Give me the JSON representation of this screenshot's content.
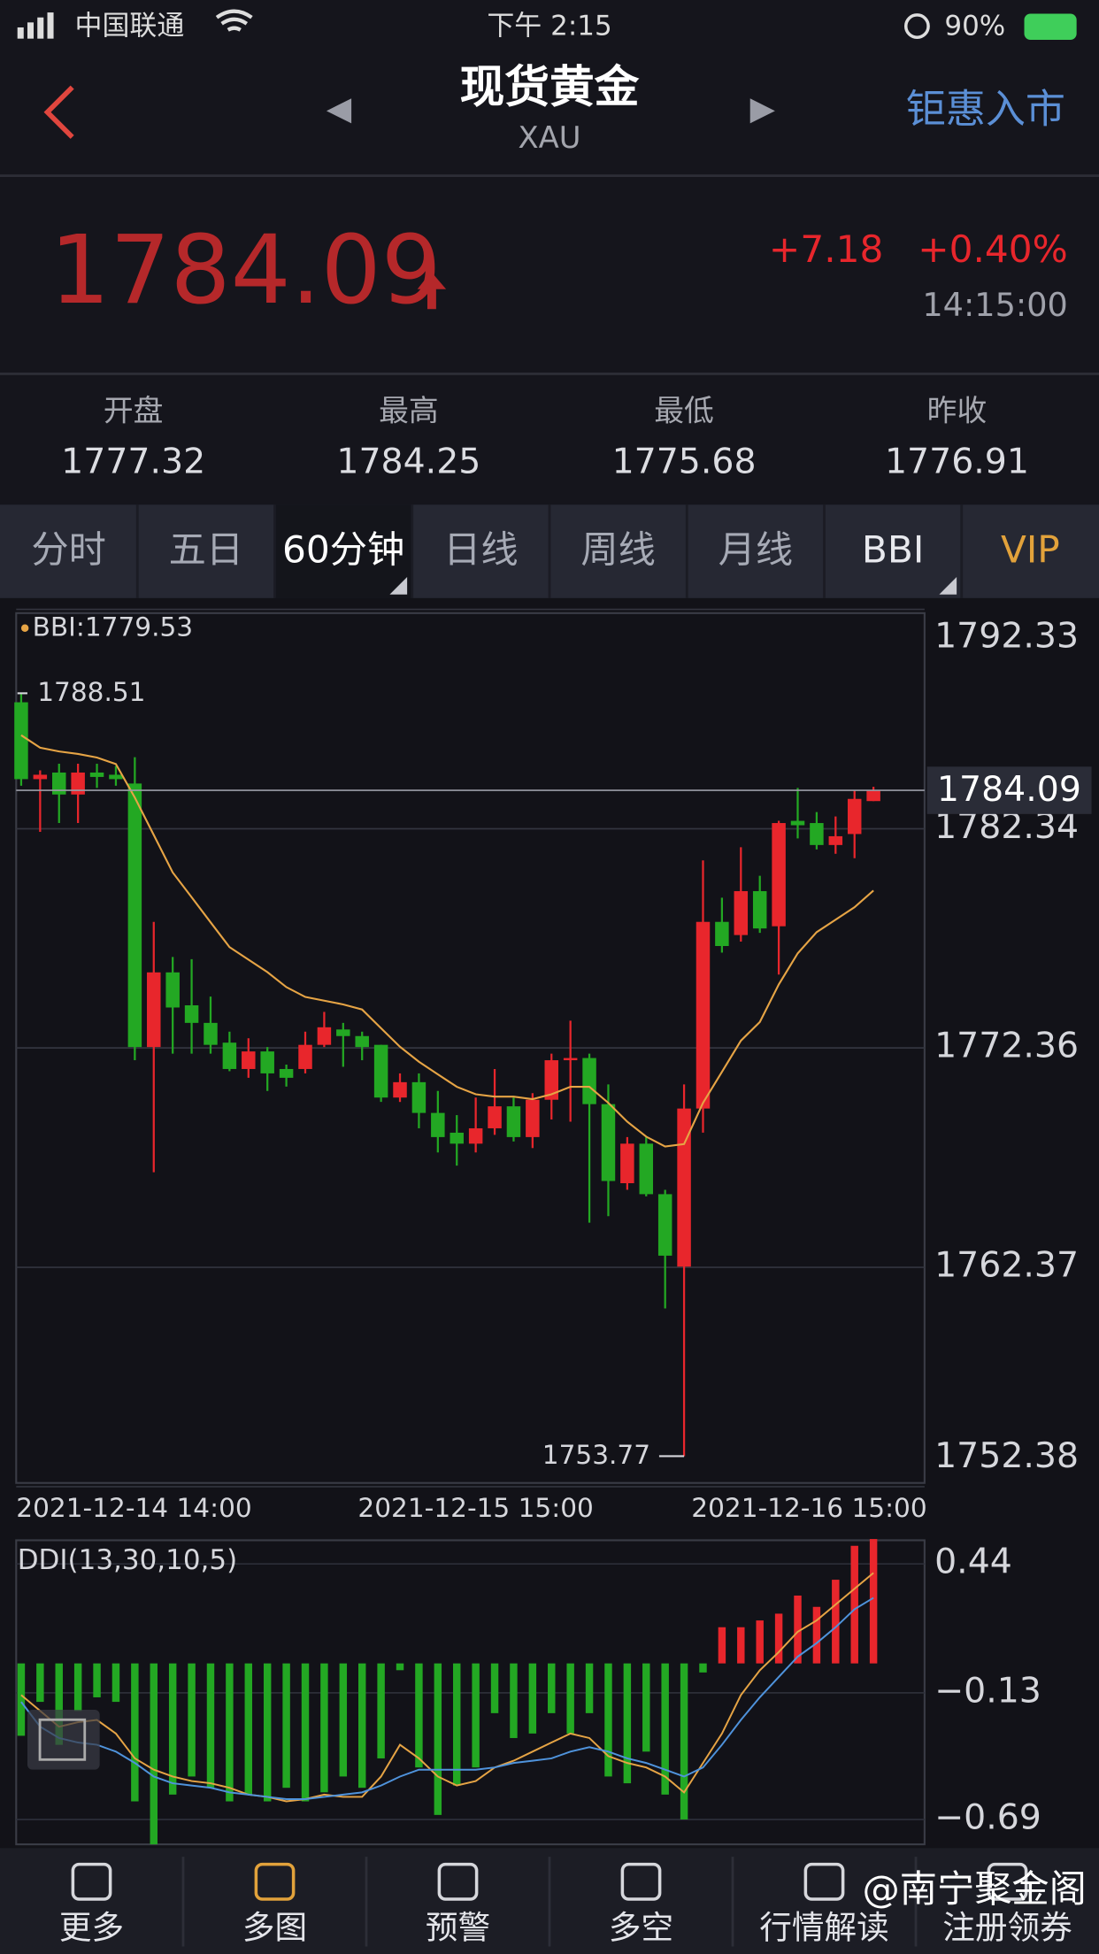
{
  "status_bar": {
    "carrier": "中国联通",
    "time": "下午 2:15",
    "battery": "90%"
  },
  "header": {
    "title": "现货黄金",
    "subtitle": "XAU",
    "action": "钜惠入市"
  },
  "quote": {
    "price": "1784.09",
    "change": "+7.18",
    "change_pct": "+0.40%",
    "time": "14:15:00"
  },
  "stats": [
    {
      "label": "开盘",
      "value": "1777.32"
    },
    {
      "label": "最高",
      "value": "1784.25"
    },
    {
      "label": "最低",
      "value": "1775.68"
    },
    {
      "label": "昨收",
      "value": "1776.91"
    }
  ],
  "tabs": [
    "分时",
    "五日",
    "60分钟",
    "日线",
    "周线",
    "月线",
    "BBI",
    "VIP"
  ],
  "chart_data": [
    {
      "type": "candlestick",
      "categories": [
        "2021-12-14 14:00",
        null,
        null,
        null,
        null,
        null,
        null,
        null,
        null,
        null,
        null,
        null,
        null,
        null,
        null,
        null,
        null,
        null,
        null,
        null,
        null,
        null,
        null,
        null,
        "2021-12-15 15:00",
        null,
        null,
        null,
        null,
        null,
        null,
        null,
        null,
        null,
        null,
        null,
        null,
        null,
        null,
        null,
        null,
        null,
        "2021-12-16 15:00",
        null,
        null,
        null
      ],
      "open": [
        1788.1,
        1784.6,
        1784.9,
        1783.9,
        1784.9,
        1784.8,
        1784.4,
        1772.4,
        1775.8,
        1774.3,
        1773.5,
        1772.6,
        1771.4,
        1772.2,
        1771.4,
        1771.4,
        1772.5,
        1773.2,
        1772.9,
        1772.5,
        1770.1,
        1770.8,
        1769.4,
        1768.5,
        1768.0,
        1768.7,
        1769.7,
        1768.3,
        1770.0,
        1771.8,
        1771.9,
        1769.8,
        1766.2,
        1768.0,
        1765.7,
        1762.4,
        1769.6,
        1778.1,
        1777.5,
        1779.5,
        1777.9,
        1782.7,
        1782.6,
        1781.6,
        1782.1,
        1783.6
      ],
      "high": [
        1788.51,
        1785.0,
        1785.3,
        1785.3,
        1785.3,
        1785.2,
        1785.6,
        1778.1,
        1776.5,
        1776.4,
        1774.7,
        1773.1,
        1772.8,
        1772.4,
        1771.6,
        1773.1,
        1774.0,
        1773.5,
        1773.1,
        1772.5,
        1771.2,
        1771.2,
        1770.4,
        1769.3,
        1770.1,
        1771.4,
        1770.1,
        1770.3,
        1772.1,
        1773.6,
        1772.1,
        1770.7,
        1768.3,
        1768.3,
        1765.9,
        1770.7,
        1780.9,
        1779.2,
        1781.5,
        1780.2,
        1782.7,
        1784.2,
        1783.1,
        1782.9,
        1784.1,
        1784.25
      ],
      "low": [
        1784.3,
        1782.2,
        1782.6,
        1782.6,
        1784.2,
        1784.3,
        1771.8,
        1766.7,
        1772.1,
        1772.1,
        1772.1,
        1771.3,
        1771.0,
        1770.4,
        1770.6,
        1771.2,
        1772.4,
        1771.5,
        1771.8,
        1769.9,
        1769.9,
        1768.7,
        1767.6,
        1767.0,
        1767.6,
        1768.4,
        1768.1,
        1767.8,
        1769.1,
        1769.0,
        1764.4,
        1764.7,
        1765.9,
        1765.6,
        1760.5,
        1753.77,
        1768.5,
        1776.7,
        1777.2,
        1777.6,
        1775.7,
        1781.9,
        1781.4,
        1781.2,
        1781.0,
        1783.6
      ],
      "close": [
        1784.6,
        1784.8,
        1783.9,
        1784.9,
        1784.7,
        1784.6,
        1772.4,
        1775.8,
        1774.2,
        1773.5,
        1772.5,
        1771.4,
        1772.2,
        1771.2,
        1771.0,
        1772.5,
        1773.3,
        1772.9,
        1772.4,
        1770.1,
        1770.8,
        1769.4,
        1768.3,
        1768.0,
        1768.7,
        1769.7,
        1768.3,
        1770.0,
        1771.8,
        1771.9,
        1769.8,
        1766.3,
        1768.0,
        1765.7,
        1762.9,
        1769.6,
        1778.1,
        1777.0,
        1779.5,
        1777.8,
        1782.6,
        1782.5,
        1781.6,
        1782.0,
        1783.7,
        1784.09
      ],
      "up_color": "#e8262c",
      "down_color": "#23a823",
      "series": [
        {
          "name": "BBI",
          "color": "#e6a445",
          "values": [
            1786.6,
            1786.03,
            1785.86,
            1785.75,
            1785.58,
            1785.29,
            1783.76,
            1782.06,
            1780.35,
            1779.22,
            1778.08,
            1776.95,
            1776.38,
            1775.81,
            1775.13,
            1774.68,
            1774.51,
            1774.34,
            1774.11,
            1773.26,
            1772.41,
            1771.73,
            1771.16,
            1770.59,
            1770.25,
            1770.14,
            1770.14,
            1770.03,
            1770.25,
            1770.59,
            1770.59,
            1769.86,
            1769.0,
            1768.32,
            1767.87,
            1767.98,
            1769.86,
            1771.27,
            1772.69,
            1773.54,
            1775.25,
            1776.67,
            1777.63,
            1778.2,
            1778.77,
            1779.53
          ]
        }
      ],
      "ylim": [
        1752.38,
        1792.33
      ],
      "yticks": [
        1752.38,
        1762.37,
        1772.36,
        1782.34,
        1792.33
      ],
      "grid": true
    },
    {
      "type": "bar",
      "title": "DDI(13,30,10,5)",
      "values": [
        -0.32,
        -0.17,
        -0.36,
        -0.21,
        -0.15,
        -0.17,
        -0.61,
        -0.8,
        -0.58,
        -0.5,
        -0.55,
        -0.61,
        -0.58,
        -0.61,
        -0.55,
        -0.61,
        -0.57,
        -0.5,
        -0.55,
        -0.42,
        -0.03,
        -0.46,
        -0.67,
        -0.54,
        -0.46,
        -0.22,
        -0.33,
        -0.31,
        -0.22,
        -0.31,
        -0.22,
        -0.5,
        -0.53,
        -0.39,
        -0.58,
        -0.69,
        -0.04,
        0.16,
        0.16,
        0.19,
        0.22,
        0.3,
        0.25,
        0.37,
        0.52,
        0.55
      ],
      "up_color": "#e8262c",
      "down_color": "#23a823",
      "series": [
        {
          "color": "#e6a445",
          "values": [
            -0.14,
            -0.21,
            -0.28,
            -0.26,
            -0.25,
            -0.31,
            -0.42,
            -0.47,
            -0.5,
            -0.52,
            -0.53,
            -0.55,
            -0.58,
            -0.59,
            -0.61,
            -0.6,
            -0.58,
            -0.59,
            -0.59,
            -0.5,
            -0.36,
            -0.42,
            -0.5,
            -0.54,
            -0.52,
            -0.46,
            -0.43,
            -0.39,
            -0.35,
            -0.31,
            -0.33,
            -0.41,
            -0.44,
            -0.46,
            -0.5,
            -0.57,
            -0.44,
            -0.31,
            -0.14,
            -0.03,
            0.05,
            0.14,
            0.19,
            0.26,
            0.33,
            0.4
          ]
        },
        {
          "color": "#4f93dc",
          "values": [
            -0.17,
            -0.28,
            -0.33,
            -0.35,
            -0.36,
            -0.39,
            -0.44,
            -0.5,
            -0.53,
            -0.54,
            -0.55,
            -0.57,
            -0.58,
            -0.59,
            -0.6,
            -0.6,
            -0.59,
            -0.58,
            -0.57,
            -0.54,
            -0.5,
            -0.47,
            -0.47,
            -0.47,
            -0.47,
            -0.46,
            -0.44,
            -0.43,
            -0.42,
            -0.39,
            -0.37,
            -0.39,
            -0.42,
            -0.44,
            -0.47,
            -0.5,
            -0.46,
            -0.36,
            -0.25,
            -0.15,
            -0.06,
            0.03,
            0.09,
            0.16,
            0.24,
            0.29
          ]
        }
      ],
      "ylim": [
        -0.8,
        0.55
      ],
      "yticks": [
        0.44,
        {
          "value": -0.13,
          "label": "−0.13"
        },
        {
          "value": -0.69,
          "label": "−0.69"
        }
      ],
      "grid": true
    }
  ],
  "toolbar": [
    "更多",
    "多图",
    "预警",
    "多空",
    "行情解读",
    "注册领券"
  ],
  "watermark": "@南宁聚金阁"
}
